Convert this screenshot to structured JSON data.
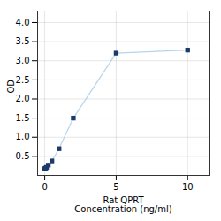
{
  "chart_data": {
    "type": "line",
    "xlabel": "Rat QPRT\nConcentration (ng/ml)",
    "ylabel": "OD",
    "x": [
      0,
      0.0625,
      0.125,
      0.25,
      0.5,
      1,
      2,
      5,
      10
    ],
    "series": [
      {
        "type": "line",
        "color": "#b8d4ea",
        "values": [
          0.175,
          0.19,
          0.21,
          0.27,
          0.38,
          0.7,
          1.5,
          3.2,
          3.28
        ]
      },
      {
        "type": "scatter",
        "color": "#1a3a6b",
        "marker": "square",
        "values": [
          0.175,
          0.19,
          0.21,
          0.27,
          0.38,
          0.7,
          1.5,
          3.2,
          3.28
        ]
      }
    ],
    "xlim": [
      -0.5,
      11.5
    ],
    "ylim": [
      0.0,
      4.3
    ],
    "xticks": [
      0,
      5,
      10
    ],
    "yticks": [
      0.5,
      {
        "value": 1.0,
        "label": "1.0"
      },
      1.5,
      {
        "value": 2.0,
        "label": "2.0"
      },
      2.5,
      {
        "value": 3.0,
        "label": "3.0"
      },
      3.5,
      {
        "value": 4.0,
        "label": "4.0"
      }
    ],
    "grid": true
  }
}
